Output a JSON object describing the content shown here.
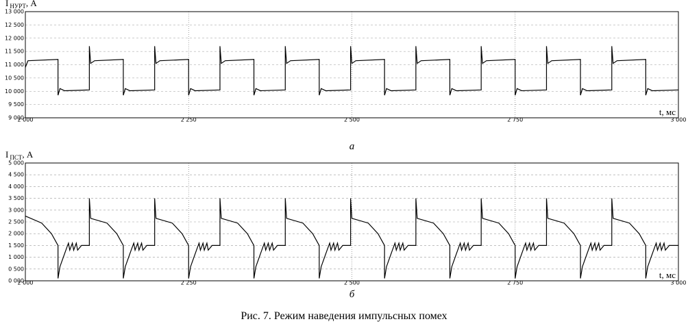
{
  "chart_data": [
    {
      "type": "line",
      "ylabel": "I",
      "ylabel_subscript": "НУРТ",
      "ylabel_unit": ", А",
      "xlabel": "t, мс",
      "panel_label": "а",
      "color": "#000000",
      "grid": true,
      "xlim": [
        2000,
        3000
      ],
      "xticks": [
        {
          "value": 2000,
          "label": "2 000"
        },
        {
          "value": 2250,
          "label": "2 250"
        },
        {
          "value": 2500,
          "label": "2 500"
        },
        {
          "value": 2750,
          "label": "2 750"
        },
        {
          "value": 3000,
          "label": "3 000"
        }
      ],
      "ylim": [
        9000,
        13000
      ],
      "yticks": [
        {
          "value": 9000,
          "label": "9 000"
        },
        {
          "value": 9500,
          "label": "9 500"
        },
        {
          "value": 10000,
          "label": "10 000"
        },
        {
          "value": 10500,
          "label": "10 500"
        },
        {
          "value": 11000,
          "label": "11 000"
        },
        {
          "value": 11500,
          "label": "11 500"
        },
        {
          "value": 12000,
          "label": "12 000"
        },
        {
          "value": 12500,
          "label": "12 500"
        },
        {
          "value": 13000,
          "label": "13 000"
        }
      ],
      "x": [
        2000,
        2004,
        2050,
        2050,
        2053,
        2060,
        2098,
        2098,
        2100,
        2106,
        2150,
        2150,
        2153,
        2160,
        2198,
        2198,
        2200,
        2206,
        2250,
        2250,
        2253,
        2260,
        2298,
        2298,
        2300,
        2306,
        2350,
        2350,
        2353,
        2360,
        2398,
        2398,
        2400,
        2406,
        2450,
        2450,
        2453,
        2460,
        2498,
        2498,
        2500,
        2506,
        2550,
        2550,
        2553,
        2560,
        2598,
        2598,
        2600,
        2606,
        2650,
        2650,
        2653,
        2660,
        2698,
        2698,
        2700,
        2706,
        2750,
        2750,
        2753,
        2760,
        2798,
        2798,
        2800,
        2806,
        2850,
        2850,
        2853,
        2860,
        2898,
        2898,
        2900,
        2906,
        2950,
        2950,
        2953,
        2960,
        3000
      ],
      "values": [
        10900,
        11150,
        11200,
        9850,
        10100,
        10020,
        10050,
        11700,
        11050,
        11150,
        11200,
        9850,
        10100,
        10020,
        10050,
        11700,
        11050,
        11150,
        11200,
        9850,
        10100,
        10020,
        10050,
        11700,
        11050,
        11150,
        11200,
        9850,
        10100,
        10020,
        10050,
        11700,
        11050,
        11150,
        11200,
        9850,
        10100,
        10020,
        10050,
        11700,
        11050,
        11150,
        11200,
        9850,
        10100,
        10020,
        10050,
        11700,
        11050,
        11150,
        11200,
        9850,
        10100,
        10020,
        10050,
        11700,
        11050,
        11150,
        11200,
        9850,
        10100,
        10020,
        10050,
        11700,
        11050,
        11150,
        11200,
        9850,
        10100,
        10020,
        10050,
        11700,
        11050,
        11150,
        11200,
        9850,
        10100,
        10020,
        10050
      ]
    },
    {
      "type": "line",
      "ylabel": "I",
      "ylabel_subscript": "ПСТ",
      "ylabel_unit": ", А",
      "xlabel": "t, мс",
      "panel_label": "б",
      "color": "#000000",
      "grid": true,
      "xlim": [
        2000,
        3000
      ],
      "xticks": [
        {
          "value": 2000,
          "label": "2 000"
        },
        {
          "value": 2250,
          "label": "2 250"
        },
        {
          "value": 2500,
          "label": "2 500"
        },
        {
          "value": 2750,
          "label": "2 750"
        },
        {
          "value": 3000,
          "label": "3 000"
        }
      ],
      "ylim": [
        0,
        5000
      ],
      "yticks": [
        {
          "value": 0,
          "label": "0 000"
        },
        {
          "value": 500,
          "label": "0 500"
        },
        {
          "value": 1000,
          "label": "1 000"
        },
        {
          "value": 1500,
          "label": "1 500"
        },
        {
          "value": 2000,
          "label": "2 000"
        },
        {
          "value": 2500,
          "label": "2 500"
        },
        {
          "value": 3000,
          "label": "3 000"
        },
        {
          "value": 3500,
          "label": "3 500"
        },
        {
          "value": 4000,
          "label": "4 000"
        },
        {
          "value": 4500,
          "label": "4 500"
        },
        {
          "value": 5000,
          "label": "5 000"
        }
      ],
      "x": [
        2000,
        2025,
        2040,
        2050,
        2050,
        2053,
        2062,
        2066,
        2068,
        2072,
        2074,
        2078,
        2080,
        2086,
        2098,
        2098,
        2100,
        2125,
        2140,
        2150,
        2150,
        2153,
        2162,
        2166,
        2168,
        2172,
        2174,
        2178,
        2180,
        2186,
        2198,
        2198,
        2200,
        2225,
        2240,
        2250,
        2250,
        2253,
        2262,
        2266,
        2268,
        2272,
        2274,
        2278,
        2280,
        2286,
        2298,
        2298,
        2300,
        2325,
        2340,
        2350,
        2350,
        2353,
        2362,
        2366,
        2368,
        2372,
        2374,
        2378,
        2380,
        2386,
        2398,
        2398,
        2400,
        2425,
        2440,
        2450,
        2450,
        2453,
        2462,
        2466,
        2468,
        2472,
        2474,
        2478,
        2480,
        2486,
        2498,
        2498,
        2500,
        2525,
        2540,
        2550,
        2550,
        2553,
        2562,
        2566,
        2568,
        2572,
        2574,
        2578,
        2580,
        2586,
        2598,
        2598,
        2600,
        2625,
        2640,
        2650,
        2650,
        2653,
        2662,
        2666,
        2668,
        2672,
        2674,
        2678,
        2680,
        2686,
        2698,
        2698,
        2700,
        2725,
        2740,
        2750,
        2750,
        2753,
        2762,
        2766,
        2768,
        2772,
        2774,
        2778,
        2780,
        2786,
        2798,
        2798,
        2800,
        2825,
        2840,
        2850,
        2850,
        2853,
        2862,
        2866,
        2868,
        2872,
        2874,
        2878,
        2880,
        2886,
        2898,
        2898,
        2900,
        2925,
        2940,
        2950,
        2950,
        2953,
        2962,
        2966,
        2968,
        2972,
        2974,
        2978,
        2980,
        2986,
        3000
      ],
      "values": [
        2750,
        2450,
        2000,
        1500,
        100,
        600,
        1300,
        1600,
        1300,
        1600,
        1300,
        1600,
        1300,
        1500,
        1500,
        3500,
        2650,
        2450,
        2000,
        1500,
        100,
        600,
        1300,
        1600,
        1300,
        1600,
        1300,
        1600,
        1300,
        1500,
        1500,
        3500,
        2650,
        2450,
        2000,
        1500,
        100,
        600,
        1300,
        1600,
        1300,
        1600,
        1300,
        1600,
        1300,
        1500,
        1500,
        3500,
        2650,
        2450,
        2000,
        1500,
        100,
        600,
        1300,
        1600,
        1300,
        1600,
        1300,
        1600,
        1300,
        1500,
        1500,
        3500,
        2650,
        2450,
        2000,
        1500,
        100,
        600,
        1300,
        1600,
        1300,
        1600,
        1300,
        1600,
        1300,
        1500,
        1500,
        3500,
        2650,
        2450,
        2000,
        1500,
        100,
        600,
        1300,
        1600,
        1300,
        1600,
        1300,
        1600,
        1300,
        1500,
        1500,
        3500,
        2650,
        2450,
        2000,
        1500,
        100,
        600,
        1300,
        1600,
        1300,
        1600,
        1300,
        1600,
        1300,
        1500,
        1500,
        3500,
        2650,
        2450,
        2000,
        1500,
        100,
        600,
        1300,
        1600,
        1300,
        1600,
        1300,
        1600,
        1300,
        1500,
        1500,
        3500,
        2650,
        2450,
        2000,
        1500,
        100,
        600,
        1300,
        1600,
        1300,
        1600,
        1300,
        1600,
        1300,
        1500,
        1500,
        3500,
        2650,
        2450,
        2000,
        1500,
        100,
        600,
        1300,
        1600,
        1300,
        1600,
        1300,
        1600,
        1300,
        1500,
        1500
      ]
    }
  ],
  "figure_caption": "Рис. 7. Режим наведения импульсных помех"
}
